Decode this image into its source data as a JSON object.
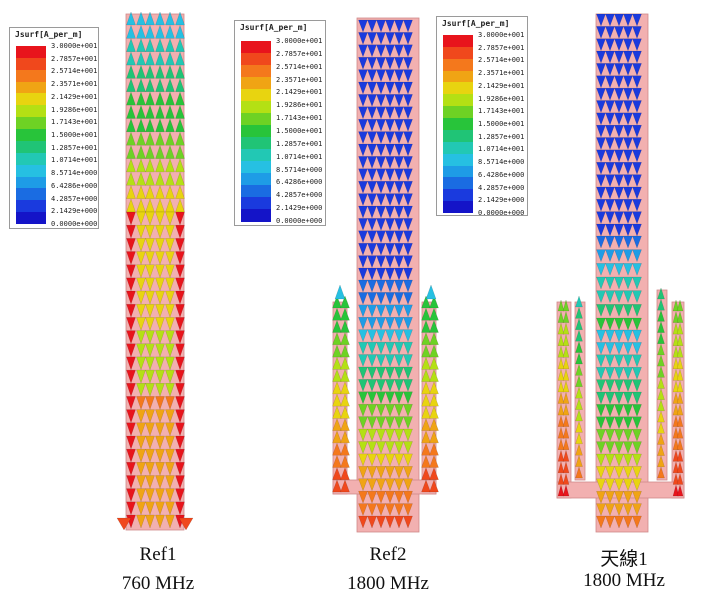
{
  "legend": {
    "title": "Jsurf[A_per_m]",
    "labels": [
      "3.0000e+001",
      "2.7857e+001",
      "2.5714e+001",
      "2.3571e+001",
      "2.1429e+001",
      "1.9286e+001",
      "1.7143e+001",
      "1.5000e+001",
      "1.2857e+001",
      "1.0714e+001",
      "8.5714e+000",
      "6.4286e+000",
      "4.2857e+000",
      "2.1429e+000",
      "0.0000e+000"
    ],
    "colors": [
      "#e8141c",
      "#f0481c",
      "#f4781c",
      "#f0a414",
      "#e8d410",
      "#b4e014",
      "#6ed224",
      "#28c43a",
      "#20c476",
      "#22c8b4",
      "#26c0e2",
      "#1e9ce6",
      "#1a6ce2",
      "#1a3ade",
      "#1414c8"
    ]
  },
  "antennas": [
    {
      "caption_line1": "Ref1",
      "caption_line2": "760 MHz"
    },
    {
      "caption_line1": "Ref2",
      "caption_line2": "1800 MHz"
    },
    {
      "caption_line1": "天線1",
      "caption_line2": "1800 MHz"
    }
  ],
  "colors": {
    "board": "#f2b0b0",
    "board_edge": "#d08a8a"
  }
}
